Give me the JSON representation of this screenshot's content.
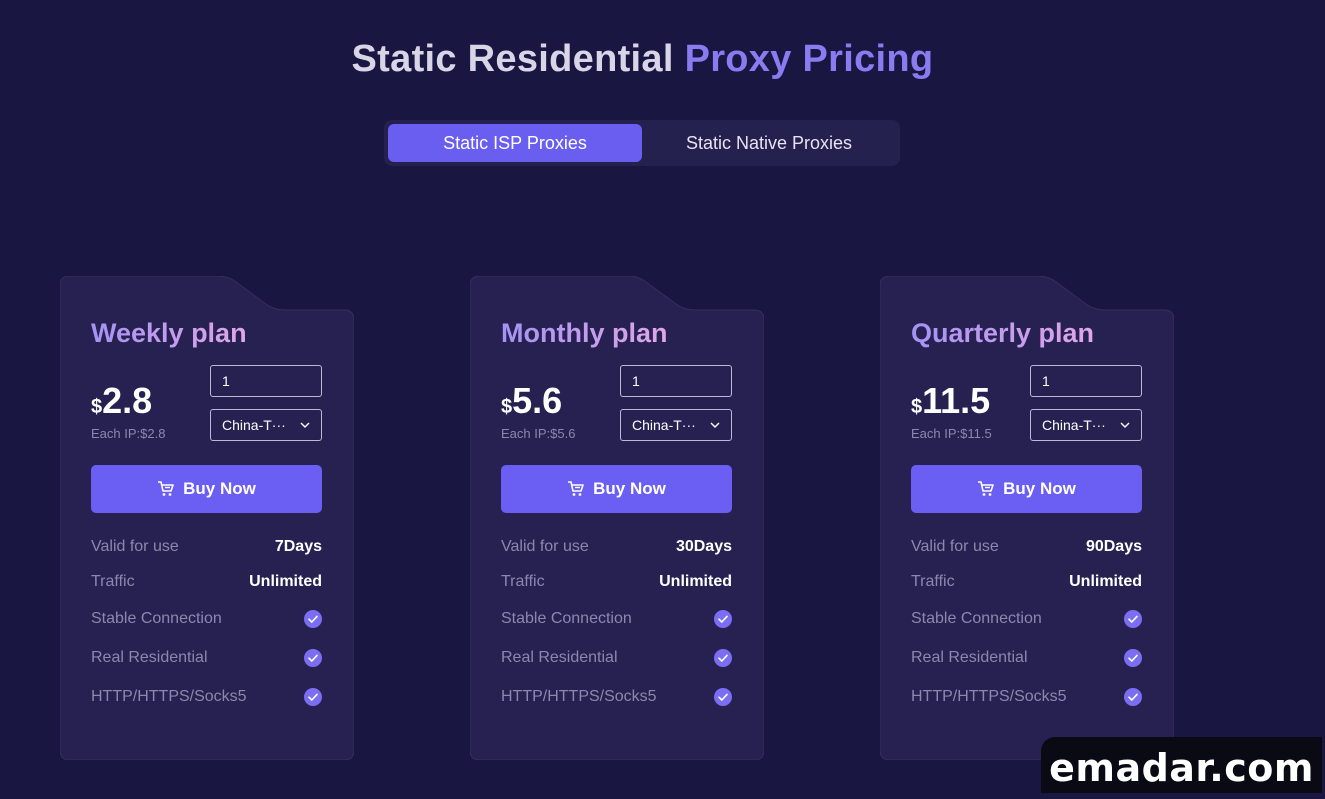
{
  "page": {
    "title_part1": "Static Residential",
    "title_part2": "Proxy Pricing"
  },
  "tabs": [
    {
      "label": "Static ISP Proxies",
      "active": true
    },
    {
      "label": "Static Native Proxies",
      "active": false
    }
  ],
  "colors": {
    "background": "#1a1642",
    "accent": "#6b5ef2",
    "check": "#7b6ef3"
  },
  "labels": {
    "currency": "$",
    "buy_now": "Buy Now",
    "valid_for_use": "Valid for use",
    "traffic": "Traffic",
    "stable_connection": "Stable Connection",
    "real_residential": "Real Residential",
    "protocols": "HTTP/HTTPS/Socks5"
  },
  "plans": [
    {
      "title": "Weekly plan",
      "price": "2.8",
      "each_ip": "Each IP:$2.8",
      "quantity": "1",
      "region": "China-T···",
      "valid": "7Days",
      "traffic": "Unlimited"
    },
    {
      "title": "Monthly plan",
      "price": "5.6",
      "each_ip": "Each IP:$5.6",
      "quantity": "1",
      "region": "China-T···",
      "valid": "30Days",
      "traffic": "Unlimited"
    },
    {
      "title": "Quarterly plan",
      "price": "11.5",
      "each_ip": "Each IP:$11.5",
      "quantity": "1",
      "region": "China-T···",
      "valid": "90Days",
      "traffic": "Unlimited"
    }
  ],
  "icons": {
    "buy": "cart-icon",
    "select": "chevron-down-icon",
    "feature": "check-circle-icon"
  },
  "watermark": "emadar.com"
}
